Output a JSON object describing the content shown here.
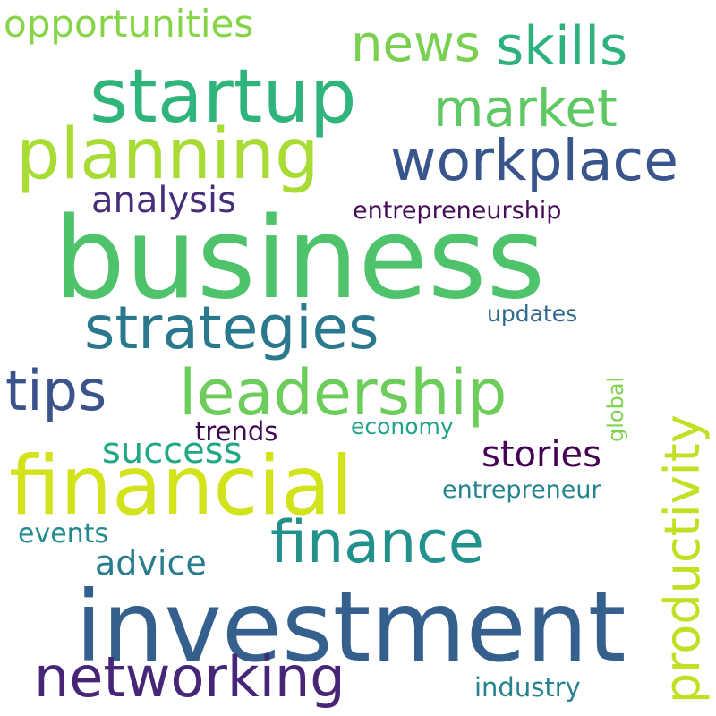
{
  "words": [
    {
      "id": "business",
      "text": "business",
      "color": "#4ec36b"
    },
    {
      "id": "investment",
      "text": "investment",
      "color": "#355f8d"
    },
    {
      "id": "financial",
      "text": "financial",
      "color": "#d2e21b"
    },
    {
      "id": "startup",
      "text": "startup",
      "color": "#2fb47c"
    },
    {
      "id": "planning",
      "text": "planning",
      "color": "#a8db34"
    },
    {
      "id": "leadership",
      "text": "leadership",
      "color": "#6ccd5a"
    },
    {
      "id": "strategies",
      "text": "strategies",
      "color": "#2a788e"
    },
    {
      "id": "workplace",
      "text": "workplace",
      "color": "#39568c"
    },
    {
      "id": "networking",
      "text": "networking",
      "color": "#482677"
    },
    {
      "id": "finance",
      "text": "finance",
      "color": "#21918c"
    },
    {
      "id": "productivity",
      "text": "productivity",
      "color": "#c2df23"
    },
    {
      "id": "skills",
      "text": "skills",
      "color": "#2db27d"
    },
    {
      "id": "news",
      "text": "news",
      "color": "#7ad151"
    },
    {
      "id": "market",
      "text": "market",
      "color": "#5ec962"
    },
    {
      "id": "tips",
      "text": "tips",
      "color": "#3b528b"
    },
    {
      "id": "opportunities",
      "text": "opportunities",
      "color": "#86d549"
    },
    {
      "id": "success",
      "text": "success",
      "color": "#22a884"
    },
    {
      "id": "analysis",
      "text": "analysis",
      "color": "#472d7b"
    },
    {
      "id": "stories",
      "text": "stories",
      "color": "#440154"
    },
    {
      "id": "advice",
      "text": "advice",
      "color": "#287d8e"
    },
    {
      "id": "entrepreneurship",
      "text": "entrepreneurship",
      "color": "#450b57"
    },
    {
      "id": "entrepreneur",
      "text": "entrepreneur",
      "color": "#25858e"
    },
    {
      "id": "industry",
      "text": "industry",
      "color": "#26828e"
    },
    {
      "id": "updates",
      "text": "updates",
      "color": "#31688e"
    },
    {
      "id": "global",
      "text": "global",
      "color": "#7fd34e"
    },
    {
      "id": "trends",
      "text": "trends",
      "color": "#3e0751"
    },
    {
      "id": "economy",
      "text": "economy",
      "color": "#1fa287"
    },
    {
      "id": "events",
      "text": "events",
      "color": "#238a8d"
    }
  ]
}
